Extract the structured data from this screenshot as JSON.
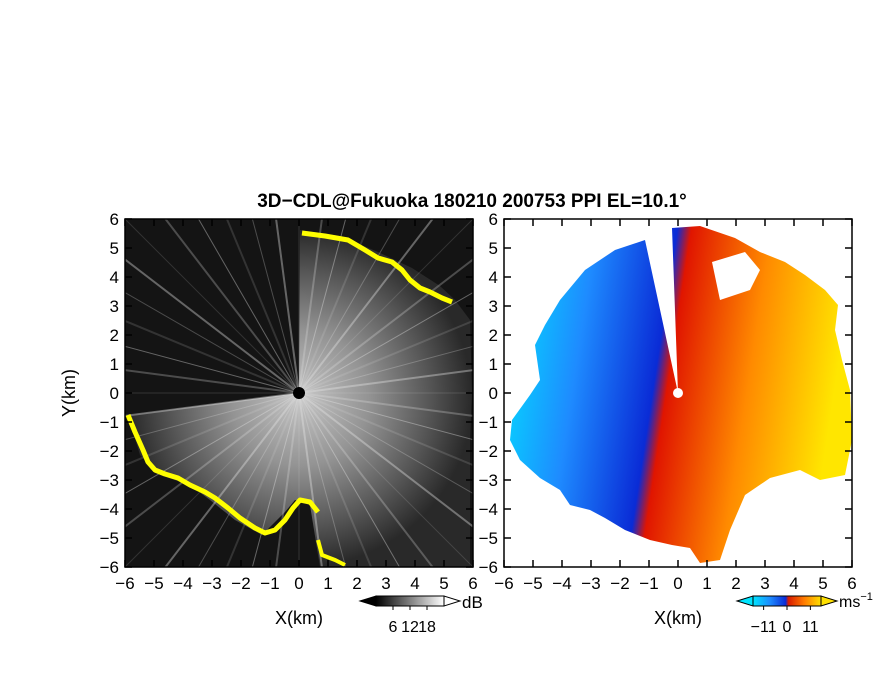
{
  "title": "3D−CDL@Fukuoka 180210 200753 PPI EL=10.1°",
  "chart_data": [
    {
      "type": "heatmap",
      "panel": "left",
      "quantity": "intensity",
      "xlabel": "X(km)",
      "ylabel": "Y(km)",
      "xlim": [
        -6,
        6
      ],
      "ylim": [
        -6,
        6
      ],
      "xticks": [
        -6,
        -5,
        -4,
        -3,
        -2,
        -1,
        0,
        1,
        2,
        3,
        4,
        5,
        6
      ],
      "yticks": [
        -6,
        -5,
        -4,
        -3,
        -2,
        -1,
        0,
        1,
        2,
        3,
        4,
        5,
        6
      ],
      "colorbar": {
        "unit": "dB",
        "ticks": [
          6,
          12,
          18
        ],
        "colors": [
          "#000000",
          "#ffffff"
        ],
        "highlight_color": "#ffff00"
      }
    },
    {
      "type": "heatmap",
      "panel": "right",
      "quantity": "doppler velocity",
      "xlabel": "X(km)",
      "xlim": [
        -6,
        6
      ],
      "ylim": [
        -6,
        6
      ],
      "xticks": [
        -6,
        -5,
        -4,
        -3,
        -2,
        -1,
        0,
        1,
        2,
        3,
        4,
        5,
        6
      ],
      "yticks": [
        -6,
        -5,
        -4,
        -3,
        -2,
        -1,
        0,
        1,
        2,
        3,
        4,
        5,
        6
      ],
      "colorbar": {
        "unit": "ms",
        "unit_exponent": "−1",
        "ticks": [
          -11,
          0,
          11
        ],
        "colors": [
          "#00e5ff",
          "#1e6bff",
          "#0a2bd6",
          "#d81a00",
          "#ff7a00",
          "#ffe000"
        ]
      }
    }
  ]
}
